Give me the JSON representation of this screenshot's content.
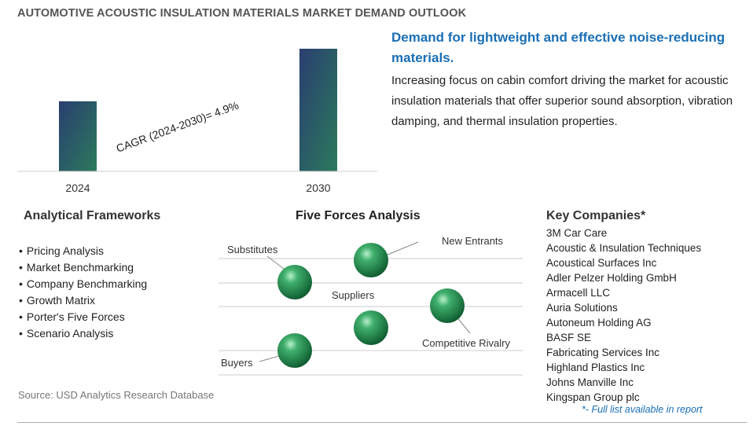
{
  "title": "AUTOMOTIVE ACOUSTIC INSULATION MATERIALS MARKET DEMAND OUTLOOK",
  "chart_data": {
    "type": "bar",
    "categories": [
      "2024",
      "2030"
    ],
    "values": [
      1.0,
      1.75
    ],
    "annotation": "CAGR (2024-2030)=    4.9%",
    "grid": false,
    "colors": {
      "bar_top": "#2a3e70",
      "bar_bottom": "#2b7a5c"
    }
  },
  "headline": "Demand for lightweight and effective noise-reducing materials.",
  "description": "Increasing focus on cabin comfort driving the market for acoustic insulation materials that offer superior sound absorption, vibration damping, and thermal insulation properties.",
  "frameworks": {
    "heading": "Analytical Frameworks",
    "items": [
      "Pricing Analysis",
      "Market Benchmarking",
      "Company Benchmarking",
      "Growth Matrix",
      "Porter's Five Forces",
      "Scenario Analysis"
    ]
  },
  "five_forces": {
    "heading": "Five Forces Analysis",
    "substitutes": "Substitutes",
    "new_entrants": "New Entrants",
    "suppliers": "Suppliers",
    "competitive_rivalry": "Competitive Rivalry",
    "buyers": "Buyers"
  },
  "key_companies": {
    "heading": "Key Companies*",
    "items": [
      "3M Car Care",
      "Acoustic & Insulation Techniques",
      "Acoustical Surfaces Inc",
      "Adler Pelzer Holding GmbH",
      "Armacell LLC",
      "Auria Solutions",
      "Autoneum Holding AG",
      "BASF SE",
      "Fabricating Services Inc",
      "Highland Plastics Inc",
      "Johns Manville Inc",
      "Kingspan Group plc"
    ],
    "note": "*- Full list available in report"
  },
  "source": "Source: USD Analytics Research Database",
  "colors": {
    "accent": "#1a6fb5",
    "sphere": "#2e8b57"
  }
}
